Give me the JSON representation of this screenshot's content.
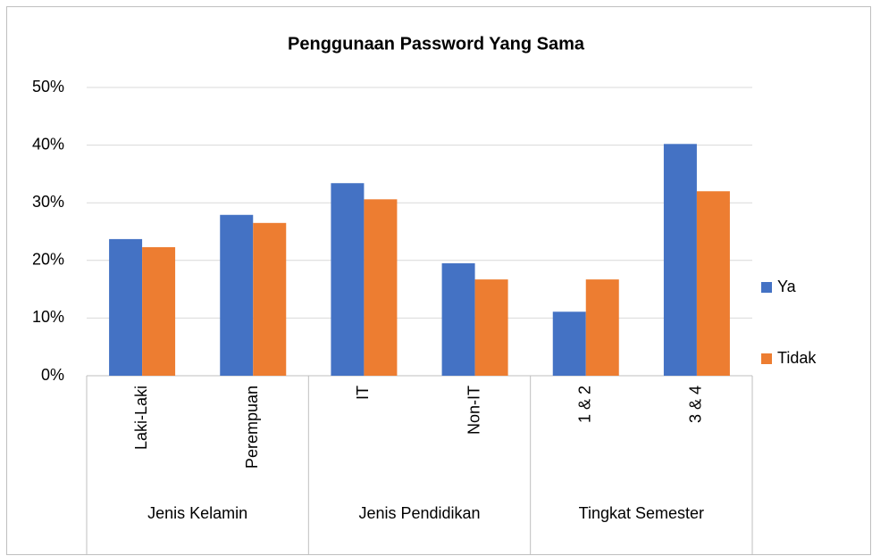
{
  "chart_data": {
    "type": "bar",
    "title": "Penggunaan Password Yang Sama",
    "groups": [
      {
        "name": "Jenis Kelamin",
        "categories": [
          "Laki-Laki",
          "Perempuan"
        ]
      },
      {
        "name": "Jenis Pendidikan",
        "categories": [
          "IT",
          "Non-IT"
        ]
      },
      {
        "name": "Tingkat Semester",
        "categories": [
          "1 & 2",
          "3 & 4"
        ]
      }
    ],
    "series": [
      {
        "name": "Ya",
        "color": "#4472c4",
        "values": [
          23.7,
          27.9,
          33.4,
          19.5,
          11.1,
          40.2
        ]
      },
      {
        "name": "Tidak",
        "color": "#ed7d31",
        "values": [
          22.3,
          26.5,
          30.6,
          16.7,
          16.7,
          32.0
        ]
      }
    ],
    "ylim": [
      0,
      50
    ],
    "yticks": [
      {
        "value": 0,
        "label": "0%"
      },
      {
        "value": 10,
        "label": "10%"
      },
      {
        "value": 20,
        "label": "20%"
      },
      {
        "value": 30,
        "label": "30%"
      },
      {
        "value": 40,
        "label": "40%"
      },
      {
        "value": 50,
        "label": "50%"
      }
    ],
    "grid": true,
    "legend": "right"
  }
}
